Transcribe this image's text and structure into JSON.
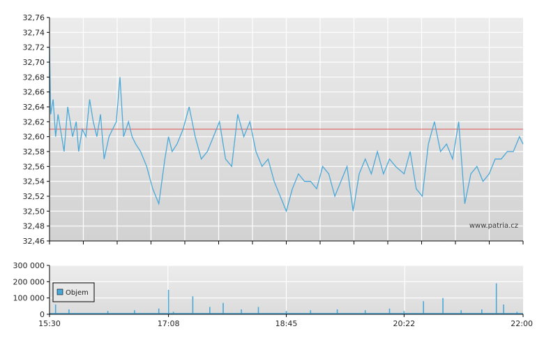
{
  "watermark": "www.patria.cz",
  "colors": {
    "price_line": "#4aa8d8",
    "reference_line": "#d9534f",
    "volume_bar": "#4aa8d8",
    "grid": "#ffffff",
    "axis": "#000000"
  },
  "chart_data": [
    {
      "type": "line",
      "grid": true,
      "x_ticks": [
        "15:30",
        "17:08",
        "18:45",
        "20:22",
        "22:00"
      ],
      "xlim": [
        "15:30",
        "22:00"
      ],
      "ylim": [
        32.46,
        32.76
      ],
      "y_ticks": [
        "32,46",
        "32,48",
        "32,50",
        "32,52",
        "32,54",
        "32,56",
        "32,58",
        "32,60",
        "32,62",
        "32,64",
        "32,66",
        "32,68",
        "32,70",
        "32,72",
        "32,74",
        "32,76"
      ],
      "reference_value": 32.61,
      "series": [
        {
          "x": [
            "15:30",
            "15:31",
            "15:33",
            "15:35",
            "15:37",
            "15:39",
            "15:42",
            "15:45",
            "15:49",
            "15:52",
            "15:54",
            "15:57",
            "16:00",
            "16:03",
            "16:06",
            "16:09",
            "16:12",
            "16:15",
            "16:19",
            "16:22",
            "16:25",
            "16:28",
            "16:31",
            "16:35",
            "16:38",
            "16:41",
            "16:45",
            "16:50",
            "16:55",
            "17:00",
            "17:05",
            "17:08",
            "17:11",
            "17:15",
            "17:20",
            "17:25",
            "17:30",
            "17:35",
            "17:40",
            "17:45",
            "17:50",
            "17:55",
            "18:00",
            "18:05",
            "18:10",
            "18:15",
            "18:20",
            "18:25",
            "18:30",
            "18:35",
            "18:40",
            "18:45",
            "18:50",
            "18:55",
            "19:00",
            "19:05",
            "19:10",
            "19:15",
            "19:20",
            "19:25",
            "19:30",
            "19:35",
            "19:40",
            "19:45",
            "19:50",
            "19:55",
            "20:00",
            "20:05",
            "20:10",
            "20:15",
            "20:22",
            "20:27",
            "20:32",
            "20:37",
            "20:42",
            "20:47",
            "20:52",
            "20:57",
            "21:02",
            "21:07",
            "21:12",
            "21:17",
            "21:22",
            "21:27",
            "21:32",
            "21:37",
            "21:42",
            "21:47",
            "21:52",
            "21:57",
            "22:00"
          ],
          "y": [
            32.72,
            32.63,
            32.65,
            32.6,
            32.63,
            32.61,
            32.58,
            32.64,
            32.6,
            32.62,
            32.58,
            32.61,
            32.6,
            32.65,
            32.62,
            32.6,
            32.63,
            32.57,
            32.6,
            32.61,
            32.62,
            32.68,
            32.6,
            32.62,
            32.6,
            32.59,
            32.58,
            32.56,
            32.53,
            32.51,
            32.57,
            32.6,
            32.58,
            32.59,
            32.61,
            32.64,
            32.6,
            32.57,
            32.58,
            32.6,
            32.62,
            32.57,
            32.56,
            32.63,
            32.6,
            32.62,
            32.58,
            32.56,
            32.57,
            32.54,
            32.52,
            32.5,
            32.53,
            32.55,
            32.54,
            32.54,
            32.53,
            32.56,
            32.55,
            32.52,
            32.54,
            32.56,
            32.5,
            32.55,
            32.57,
            32.55,
            32.58,
            32.55,
            32.57,
            32.56,
            32.55,
            32.58,
            32.53,
            32.52,
            32.59,
            32.62,
            32.58,
            32.59,
            32.57,
            32.62,
            32.51,
            32.55,
            32.56,
            32.54,
            32.55,
            32.57,
            32.57,
            32.58,
            32.58,
            32.6,
            32.59
          ]
        }
      ]
    },
    {
      "type": "bar",
      "grid": true,
      "x_ticks": [
        "15:30",
        "17:08",
        "18:45",
        "20:22",
        "22:00"
      ],
      "xlim": [
        "15:30",
        "22:00"
      ],
      "ylim": [
        0,
        300000
      ],
      "y_ticks": [
        "0",
        "100 000",
        "200 000",
        "300 000"
      ],
      "legend": "top-left",
      "series": [
        {
          "name": "Objem",
          "x": [
            "15:35",
            "15:46",
            "16:18",
            "16:40",
            "17:00",
            "17:08",
            "17:12",
            "17:28",
            "17:42",
            "17:53",
            "18:08",
            "18:22",
            "18:45",
            "19:05",
            "19:27",
            "19:50",
            "20:10",
            "20:22",
            "20:38",
            "20:54",
            "21:09",
            "21:26",
            "21:38",
            "21:44",
            "21:55"
          ],
          "values": [
            60000,
            30000,
            20000,
            25000,
            35000,
            150000,
            15000,
            110000,
            45000,
            70000,
            30000,
            45000,
            20000,
            25000,
            30000,
            25000,
            35000,
            20000,
            80000,
            100000,
            25000,
            30000,
            190000,
            60000,
            15000
          ]
        }
      ]
    }
  ]
}
